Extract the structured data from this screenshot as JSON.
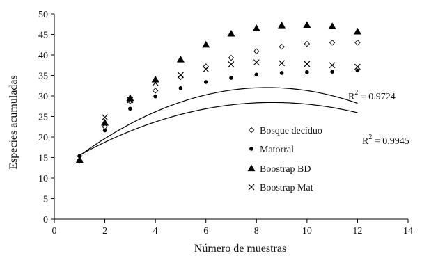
{
  "chart_data": {
    "type": "scatter",
    "title": "",
    "xlabel": "Número de muestras",
    "ylabel": "Especies acumuladas",
    "xlim": [
      0,
      14
    ],
    "ylim": [
      0,
      50
    ],
    "xticks": [
      0,
      2,
      4,
      6,
      8,
      10,
      12,
      14
    ],
    "yticks": [
      0,
      5,
      10,
      15,
      20,
      25,
      30,
      35,
      40,
      45,
      50
    ],
    "grid": false,
    "legend_position": "right",
    "series": [
      {
        "name": "Bosque decíduo",
        "marker": "diamond-open",
        "x": [
          1,
          2,
          3,
          4,
          5,
          6,
          7,
          8,
          9,
          10,
          11,
          12
        ],
        "y": [
          14.3,
          22.5,
          28.7,
          31.3,
          34.6,
          37.2,
          39.3,
          40.9,
          42.0,
          42.7,
          43.0,
          43.0
        ]
      },
      {
        "name": "Matorral",
        "marker": "circle-filled",
        "x": [
          1,
          2,
          3,
          4,
          5,
          6,
          7,
          8,
          9,
          10,
          11,
          12
        ],
        "y": [
          15.4,
          21.6,
          26.9,
          29.9,
          31.9,
          33.4,
          34.4,
          35.2,
          35.6,
          35.8,
          35.9,
          36.2
        ]
      },
      {
        "name": "Boostrap BD",
        "marker": "triangle-filled",
        "x": [
          1,
          2,
          3,
          4,
          5,
          6,
          7,
          8,
          9,
          10,
          11,
          12
        ],
        "y": [
          14.4,
          23.5,
          29.5,
          34.0,
          38.9,
          42.5,
          45.2,
          46.5,
          47.2,
          47.3,
          47.0,
          45.7
        ]
      },
      {
        "name": "Boostrap Mat",
        "marker": "x",
        "x": [
          1,
          2,
          3,
          4,
          5,
          6,
          7,
          8,
          9,
          10,
          11,
          12
        ],
        "y": [
          14.8,
          24.8,
          29.0,
          33.2,
          35.1,
          36.5,
          37.7,
          38.2,
          38.0,
          37.8,
          37.5,
          37.1
        ]
      }
    ],
    "trendlines": [
      {
        "fits": "Bosque decíduo",
        "label": "R² = 0.9945",
        "r2_label_prefix": "R",
        "r2_label_exp": "2",
        "r2_label_value": " = 0.9945",
        "coef": [
          -0.3,
          5.06,
          10.7
        ]
      },
      {
        "fits": "Matorral",
        "label": "R² = 0.9724",
        "r2_label_prefix": "R",
        "r2_label_exp": "2",
        "r2_label_value": " = 0.9724",
        "coef": [
          -0.22,
          3.8,
          12.0
        ]
      }
    ]
  }
}
